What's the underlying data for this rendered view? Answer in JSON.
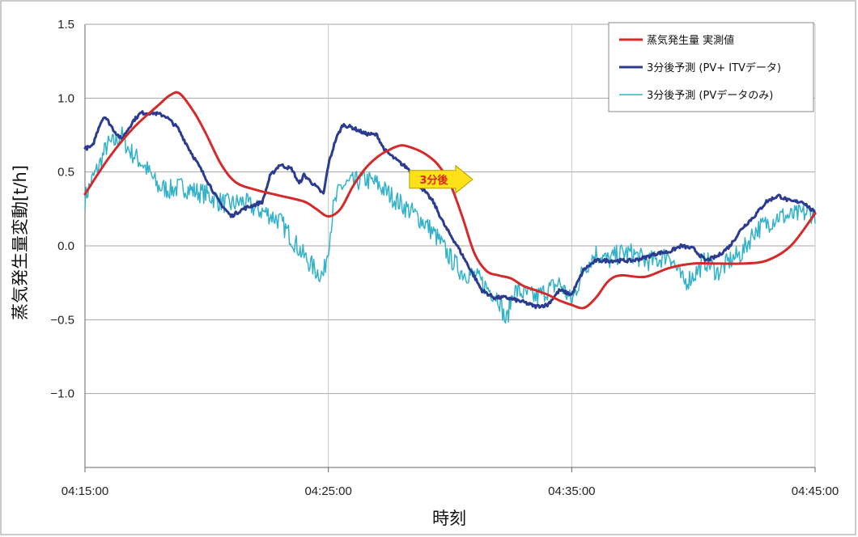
{
  "chart_data": {
    "type": "line",
    "title": "",
    "xlabel": "時刻",
    "ylabel": "蒸気発生量変動[t/h]",
    "x_unit": "minutes from 04:15:00",
    "xlim": [
      0,
      30
    ],
    "ylim": [
      -1.5,
      1.5
    ],
    "x_ticks": [
      0,
      10,
      20,
      30
    ],
    "x_tick_labels": [
      "04:15:00",
      "04:25:00",
      "04:35:00",
      "04:45:00"
    ],
    "y_ticks": [
      1.5,
      1.0,
      0.5,
      0.0,
      -0.5,
      -1.0
    ],
    "y_tick_labels": [
      "1.5",
      "1.0",
      "0.5",
      "0.0",
      "−0.5",
      "−1.0"
    ],
    "grid": true,
    "legend_position": "top-right",
    "annotation": {
      "text": "3分後",
      "x": 13.5,
      "y": 0.45
    },
    "series": [
      {
        "name": "蒸気発生量 実測値",
        "color": "#d42a2a",
        "style": "smooth",
        "points": [
          [
            0,
            0.35
          ],
          [
            1,
            0.6
          ],
          [
            2,
            0.8
          ],
          [
            3,
            0.95
          ],
          [
            3.5,
            1.02
          ],
          [
            3.9,
            1.03
          ],
          [
            4.5,
            0.9
          ],
          [
            5,
            0.75
          ],
          [
            5.6,
            0.55
          ],
          [
            6.2,
            0.43
          ],
          [
            7,
            0.38
          ],
          [
            8,
            0.34
          ],
          [
            9,
            0.3
          ],
          [
            9.5,
            0.25
          ],
          [
            10,
            0.2
          ],
          [
            10.5,
            0.25
          ],
          [
            11,
            0.4
          ],
          [
            11.5,
            0.52
          ],
          [
            12,
            0.6
          ],
          [
            12.5,
            0.65
          ],
          [
            13,
            0.68
          ],
          [
            13.5,
            0.66
          ],
          [
            14,
            0.62
          ],
          [
            14.5,
            0.55
          ],
          [
            15,
            0.42
          ],
          [
            15.5,
            0.2
          ],
          [
            16,
            -0.05
          ],
          [
            16.5,
            -0.17
          ],
          [
            17,
            -0.2
          ],
          [
            17.5,
            -0.22
          ],
          [
            18,
            -0.27
          ],
          [
            18.5,
            -0.3
          ],
          [
            19,
            -0.33
          ],
          [
            19.5,
            -0.37
          ],
          [
            20,
            -0.4
          ],
          [
            20.5,
            -0.42
          ],
          [
            21,
            -0.35
          ],
          [
            21.5,
            -0.24
          ],
          [
            22,
            -0.2
          ],
          [
            23,
            -0.21
          ],
          [
            24,
            -0.15
          ],
          [
            25,
            -0.12
          ],
          [
            26,
            -0.12
          ],
          [
            27,
            -0.12
          ],
          [
            28,
            -0.1
          ],
          [
            29,
            0.0
          ],
          [
            30,
            0.22
          ]
        ]
      },
      {
        "name": "3分後予測 (PV+ ITVデータ)",
        "color": "#2b3b8f",
        "style": "noisy",
        "noise": 0.012,
        "points": [
          [
            0,
            0.66
          ],
          [
            0.3,
            0.67
          ],
          [
            0.6,
            0.82
          ],
          [
            0.8,
            0.88
          ],
          [
            1.2,
            0.78
          ],
          [
            1.5,
            0.72
          ],
          [
            2,
            0.85
          ],
          [
            2.3,
            0.9
          ],
          [
            2.8,
            0.9
          ],
          [
            3.3,
            0.88
          ],
          [
            3.8,
            0.8
          ],
          [
            4.3,
            0.65
          ],
          [
            5,
            0.45
          ],
          [
            5.5,
            0.3
          ],
          [
            6,
            0.2
          ],
          [
            6.5,
            0.25
          ],
          [
            7,
            0.28
          ],
          [
            7.3,
            0.3
          ],
          [
            7.6,
            0.47
          ],
          [
            8,
            0.55
          ],
          [
            8.5,
            0.52
          ],
          [
            8.8,
            0.42
          ],
          [
            9,
            0.48
          ],
          [
            9.5,
            0.4
          ],
          [
            9.8,
            0.35
          ],
          [
            10,
            0.55
          ],
          [
            10.3,
            0.72
          ],
          [
            10.6,
            0.82
          ],
          [
            11,
            0.8
          ],
          [
            11.5,
            0.76
          ],
          [
            12,
            0.75
          ],
          [
            12.3,
            0.65
          ],
          [
            12.8,
            0.58
          ],
          [
            13.3,
            0.52
          ],
          [
            13.8,
            0.4
          ],
          [
            14.3,
            0.3
          ],
          [
            14.8,
            0.13
          ],
          [
            15.3,
            0.0
          ],
          [
            15.8,
            -0.15
          ],
          [
            16.3,
            -0.3
          ],
          [
            16.8,
            -0.35
          ],
          [
            17.3,
            -0.35
          ],
          [
            18,
            -0.38
          ],
          [
            18.5,
            -0.41
          ],
          [
            19,
            -0.4
          ],
          [
            19.5,
            -0.3
          ],
          [
            20,
            -0.33
          ],
          [
            20.5,
            -0.16
          ],
          [
            21,
            -0.1
          ],
          [
            21.5,
            -0.1
          ],
          [
            22,
            -0.1
          ],
          [
            22.5,
            -0.1
          ],
          [
            23,
            -0.08
          ],
          [
            23.5,
            -0.05
          ],
          [
            24,
            -0.04
          ],
          [
            24.5,
            0.0
          ],
          [
            25,
            -0.02
          ],
          [
            25.5,
            -0.1
          ],
          [
            26,
            -0.07
          ],
          [
            26.5,
            0.0
          ],
          [
            27,
            0.12
          ],
          [
            27.5,
            0.2
          ],
          [
            28,
            0.3
          ],
          [
            28.5,
            0.34
          ],
          [
            29,
            0.3
          ],
          [
            29.5,
            0.3
          ],
          [
            30,
            0.22
          ]
        ]
      },
      {
        "name": "3分後予測 (PVデータのみ)",
        "color": "#33b2c9",
        "style": "noisy",
        "noise": 0.07,
        "points": [
          [
            0,
            0.32
          ],
          [
            0.3,
            0.45
          ],
          [
            0.6,
            0.55
          ],
          [
            0.9,
            0.68
          ],
          [
            1.2,
            0.7
          ],
          [
            1.5,
            0.75
          ],
          [
            1.8,
            0.65
          ],
          [
            2.1,
            0.6
          ],
          [
            2.4,
            0.55
          ],
          [
            2.7,
            0.48
          ],
          [
            3,
            0.4
          ],
          [
            3.5,
            0.38
          ],
          [
            4,
            0.4
          ],
          [
            4.5,
            0.37
          ],
          [
            5,
            0.35
          ],
          [
            5.5,
            0.3
          ],
          [
            6,
            0.28
          ],
          [
            6.5,
            0.3
          ],
          [
            7,
            0.25
          ],
          [
            7.5,
            0.22
          ],
          [
            8,
            0.17
          ],
          [
            8.5,
            0.05
          ],
          [
            9,
            -0.07
          ],
          [
            9.5,
            -0.17
          ],
          [
            9.8,
            -0.2
          ],
          [
            10,
            0.0
          ],
          [
            10.2,
            0.25
          ],
          [
            10.5,
            0.4
          ],
          [
            11,
            0.43
          ],
          [
            11.5,
            0.45
          ],
          [
            12,
            0.42
          ],
          [
            12.5,
            0.35
          ],
          [
            13,
            0.28
          ],
          [
            13.5,
            0.22
          ],
          [
            14,
            0.15
          ],
          [
            14.5,
            0.05
          ],
          [
            15,
            -0.08
          ],
          [
            15.5,
            -0.18
          ],
          [
            16,
            -0.2
          ],
          [
            16.5,
            -0.28
          ],
          [
            17,
            -0.35
          ],
          [
            17.3,
            -0.52
          ],
          [
            17.6,
            -0.3
          ],
          [
            18,
            -0.32
          ],
          [
            18.5,
            -0.35
          ],
          [
            19,
            -0.3
          ],
          [
            19.5,
            -0.25
          ],
          [
            20,
            -0.38
          ],
          [
            20.5,
            -0.15
          ],
          [
            21,
            -0.05
          ],
          [
            21.5,
            -0.1
          ],
          [
            22,
            -0.05
          ],
          [
            22.5,
            -0.05
          ],
          [
            23,
            -0.1
          ],
          [
            23.5,
            -0.1
          ],
          [
            24,
            -0.05
          ],
          [
            24.3,
            -0.15
          ],
          [
            24.6,
            -0.25
          ],
          [
            25,
            -0.2
          ],
          [
            25.5,
            -0.1
          ],
          [
            26,
            -0.18
          ],
          [
            26.5,
            -0.1
          ],
          [
            27,
            -0.05
          ],
          [
            27.5,
            0.1
          ],
          [
            28,
            0.15
          ],
          [
            28.5,
            0.2
          ],
          [
            29,
            0.2
          ],
          [
            29.5,
            0.22
          ],
          [
            30,
            0.22
          ]
        ]
      }
    ]
  }
}
